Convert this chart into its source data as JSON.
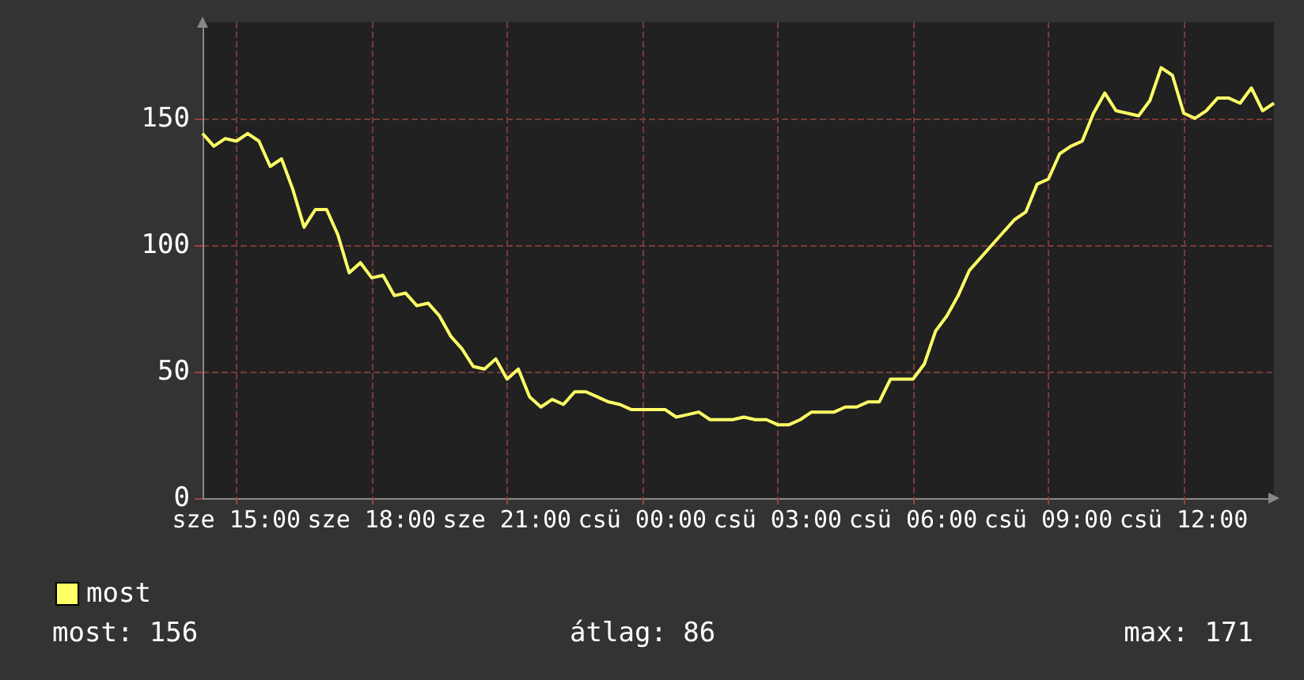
{
  "chart_data": {
    "type": "line",
    "categories": [
      null,
      null,
      null,
      "sze 15:00",
      null,
      null,
      null,
      null,
      null,
      null,
      null,
      null,
      null,
      null,
      null,
      "sze 18:00",
      null,
      null,
      null,
      null,
      null,
      null,
      null,
      null,
      null,
      null,
      null,
      "sze 21:00",
      null,
      null,
      null,
      null,
      null,
      null,
      null,
      null,
      null,
      null,
      null,
      "csü 00:00",
      null,
      null,
      null,
      null,
      null,
      null,
      null,
      null,
      null,
      null,
      null,
      "csü 03:00",
      null,
      null,
      null,
      null,
      null,
      null,
      null,
      null,
      null,
      null,
      null,
      "csü 06:00",
      null,
      null,
      null,
      null,
      null,
      null,
      null,
      null,
      null,
      null,
      null,
      "csü 09:00",
      null,
      null,
      null,
      null,
      null,
      null,
      null,
      null,
      null,
      null,
      null,
      "csü 12:00",
      null,
      null,
      null,
      null,
      null,
      null,
      null,
      null
    ],
    "series": [
      {
        "name": "most",
        "color": "#ffff66",
        "values": [
          144,
          139,
          142,
          141,
          144,
          141,
          131,
          134,
          122,
          107,
          114,
          114,
          104,
          89,
          93,
          87,
          88,
          80,
          81,
          76,
          77,
          72,
          64,
          59,
          52,
          51,
          55,
          47,
          51,
          40,
          36,
          39,
          37,
          42,
          42,
          40,
          38,
          37,
          35,
          35,
          35,
          35,
          32,
          33,
          34,
          31,
          31,
          31,
          32,
          31,
          31,
          29,
          29,
          31,
          34,
          34,
          34,
          36,
          36,
          38,
          38,
          47,
          47,
          47,
          53,
          66,
          72,
          80,
          90,
          95,
          100,
          105,
          110,
          113,
          124,
          126,
          136,
          139,
          141,
          152,
          160,
          153,
          152,
          151,
          157,
          170,
          167,
          152,
          150,
          153,
          158,
          158,
          156,
          162,
          153,
          156
        ]
      }
    ],
    "ylim": [
      0,
      188
    ],
    "yticks": [
      0,
      50,
      100,
      150
    ],
    "grid": true,
    "legend": "bottom left",
    "marker": "none",
    "annotations": [
      "most: 156",
      "átlag: 86",
      "max: 171"
    ]
  }
}
